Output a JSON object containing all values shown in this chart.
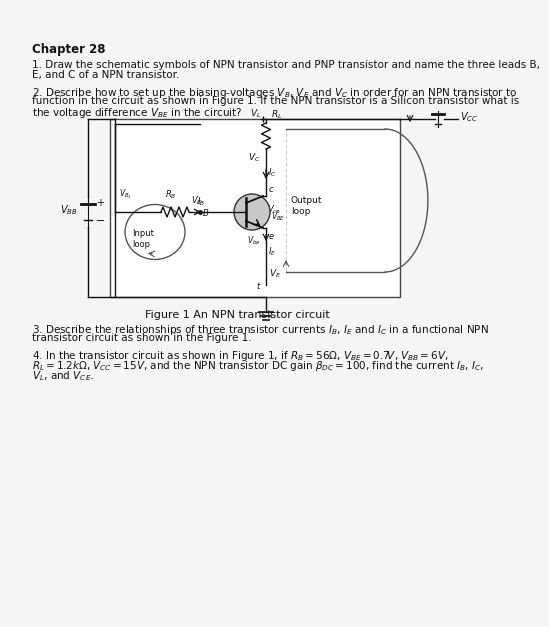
{
  "background_color": "#f5f5f5",
  "text_color": "#111111",
  "title": "Chapter 28",
  "p1l1": "1. Draw the schematic symbols of NPN transistor and PNP transistor and name the three leads B,",
  "p1l2": "E, and C of a NPN transistor.",
  "p2l1": "2. Describe how to set up the biasing-voltages $V_B$, $V_E$ and $V_C$ in order for an NPN transistor to",
  "p2l2": "function in the circuit as shown in Figure 1. If the NPN transistor is a Silicon transistor what is",
  "p2l3": "the voltage difference $V_{BE}$ in the circuit?",
  "p3l1": "3. Describe the relationships of three transistor currents $I_B$, $I_E$ and $I_C$ in a functional NPN",
  "p3l2": "transistor circuit as shown in the Figure 1.",
  "p4l1": "4. In the transistor circuit as shown in Figure 1, if $R_B = 56\\Omega$, $V_{BE} = 0.7V$, $V_{BB} = 6V$,",
  "p4l2": "$R_L = 1.2k\\Omega$, $V_{CC} = 15V$, and the NPN transistor DC gain $\\beta_{DC} = 100$, find the current $I_B$, $I_C$,",
  "p4l3": "$V_L$, and $V_{CE}$.",
  "caption": "Figure 1 An NPN transistor circuit",
  "circuit_transistor_color": "#c8c8c8"
}
